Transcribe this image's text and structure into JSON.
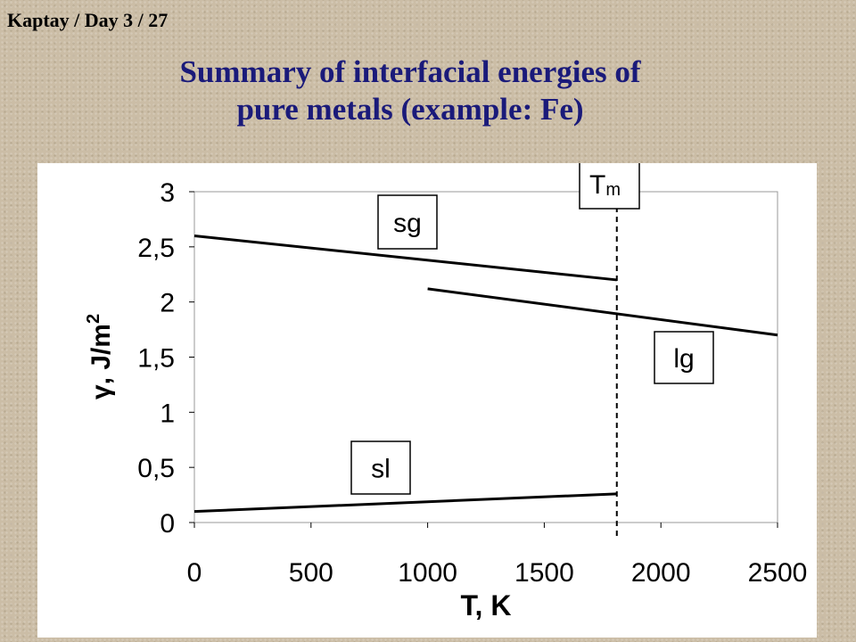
{
  "slide": {
    "header": "Kaptay / Day 3 / 27",
    "title_line1": "Summary of interfacial  energies of",
    "title_line2": "pure metals (example: Fe)"
  },
  "chart_data": {
    "type": "line",
    "title": "Summary of interfacial  energies of pure metals (example: Fe)",
    "xlabel": "T, K",
    "ylabel_main": "γ, J/m",
    "ylabel_sup": "2",
    "xlim": [
      0,
      2500
    ],
    "ylim": [
      0,
      3
    ],
    "xticks": [
      0,
      500,
      1000,
      1500,
      2000,
      2500
    ],
    "xtick_labels": [
      "0",
      "500",
      "1000",
      "1500",
      "2000",
      "2500"
    ],
    "yticks": [
      0,
      0.5,
      1,
      1.5,
      2,
      2.5,
      3
    ],
    "ytick_labels": [
      "0",
      "0,5",
      "1",
      "1,5",
      "2",
      "2,5",
      "3"
    ],
    "grid": false,
    "series": [
      {
        "name": "sg",
        "x": [
          0,
          1811
        ],
        "y": [
          2.6,
          2.2
        ]
      },
      {
        "name": "lg",
        "x": [
          1000,
          2500
        ],
        "y": [
          2.12,
          1.7
        ]
      },
      {
        "name": "sl",
        "x": [
          0,
          1811
        ],
        "y": [
          0.1,
          0.26
        ]
      }
    ],
    "annotations": [
      {
        "type": "vline",
        "x": 1811,
        "label": "T",
        "label_sub": "m"
      }
    ],
    "colors": {
      "line": "#000000",
      "title": "#1a1a7a",
      "background": "#cbbda6"
    }
  }
}
